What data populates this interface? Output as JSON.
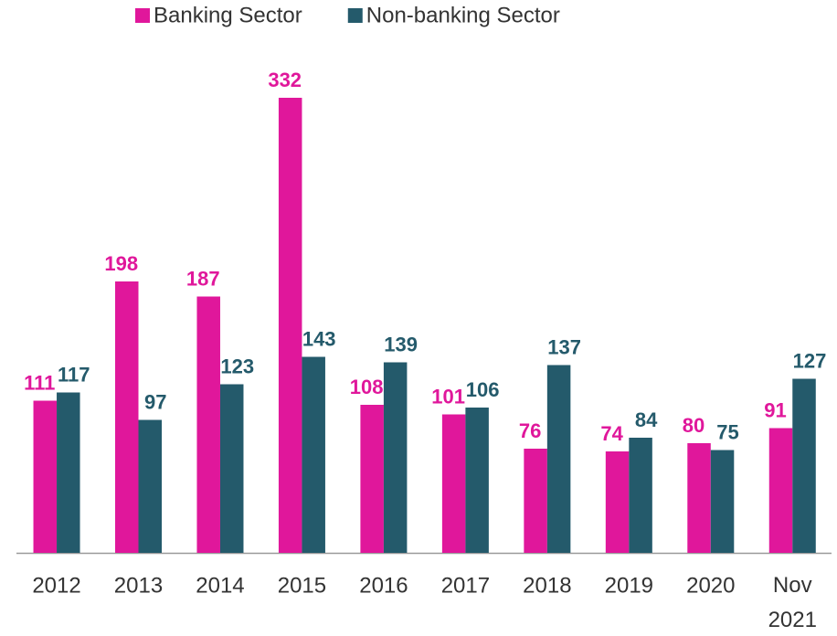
{
  "chart_data": {
    "type": "bar",
    "categories": [
      "2012",
      "2013",
      "2014",
      "2015",
      "2016",
      "2017",
      "2018",
      "2019",
      "2020",
      "Nov 2021"
    ],
    "series": [
      {
        "name": "Banking Sector",
        "color": "#e0179b",
        "values": [
          111,
          198,
          187,
          332,
          108,
          101,
          76,
          74,
          80,
          91
        ]
      },
      {
        "name": "Non-banking Sector",
        "color": "#245a6b",
        "values": [
          117,
          97,
          123,
          143,
          139,
          106,
          137,
          84,
          75,
          127
        ]
      }
    ],
    "legend": "top"
  }
}
